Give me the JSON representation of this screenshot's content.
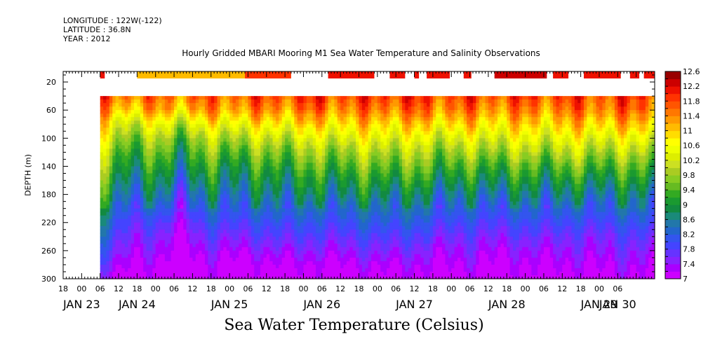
{
  "header": {
    "longitude": "LONGITUDE : 122W(-122)",
    "latitude": "LATITUDE : 36.8N",
    "year": "YEAR : 2012"
  },
  "chart_data": {
    "type": "heatmap",
    "title": "Hourly Gridded MBARI Mooring M1 Sea Water Temperature and Salinity Observations",
    "xlabel": "",
    "ylabel": "DEPTH (m)",
    "footer": "Sea Water Temperature (Celsius)",
    "x_range_hours_from_jan23_00": [
      -12,
      180
    ],
    "data_start_hour": 0,
    "ylim": [
      300,
      5
    ],
    "y_inverted": true,
    "y_ticks": [
      20,
      60,
      100,
      140,
      180,
      220,
      260,
      300
    ],
    "x_hour_ticks": [
      "18",
      "00",
      "06",
      "12",
      "18",
      "00",
      "06",
      "12",
      "18",
      "00",
      "06",
      "12",
      "18",
      "00",
      "06",
      "12",
      "18",
      "00",
      "06",
      "12",
      "18",
      "00",
      "06",
      "12",
      "18",
      "00",
      "06",
      "12",
      "18",
      "00",
      "06"
    ],
    "x_day_labels": [
      {
        "label": "JAN 23",
        "hour": -6
      },
      {
        "label": "JAN 24",
        "hour": 12
      },
      {
        "label": "JAN 25",
        "hour": 42
      },
      {
        "label": "JAN 26",
        "hour": 72
      },
      {
        "label": "JAN 27",
        "hour": 102
      },
      {
        "label": "JAN 28",
        "hour": 132
      },
      {
        "label": "JAN 29",
        "hour": 162
      },
      {
        "label": "JAN 30",
        "hour": 168
      }
    ],
    "colorbar": {
      "levels": [
        7,
        7.2,
        7.4,
        7.6,
        7.8,
        8,
        8.2,
        8.4,
        8.6,
        8.8,
        9,
        9.2,
        9.4,
        9.6,
        9.8,
        10,
        10.2,
        10.4,
        10.6,
        10.8,
        11,
        11.2,
        11.4,
        11.6,
        11.8,
        12,
        12.2,
        12.4,
        12.6
      ],
      "labels": [
        "12.6",
        "12.2",
        "11.8",
        "11.4",
        "11",
        "10.6",
        "10.2",
        "9.8",
        "9.4",
        "9",
        "8.6",
        "8.2",
        "7.8",
        "7.4",
        "7"
      ],
      "colors": [
        "#cc00ff",
        "#aa00ff",
        "#8822ff",
        "#6633ff",
        "#4444ff",
        "#3355ee",
        "#2266cc",
        "#2277aa",
        "#1a8a7a",
        "#128a40",
        "#1a9a30",
        "#33aa22",
        "#66bb22",
        "#88cc22",
        "#aacc22",
        "#cce022",
        "#ddee00",
        "#eeff00",
        "#ffff00",
        "#ffdd00",
        "#ffbb00",
        "#ff9900",
        "#ff7700",
        "#ff5500",
        "#ff3300",
        "#ee1100",
        "#cc0000",
        "#990000"
      ]
    },
    "surface_temperature_segments": [
      {
        "start_hour": 0,
        "end_hour": 1.5,
        "value": 12.0
      },
      {
        "start_hour": 12,
        "end_hour": 47,
        "value": 11.1
      },
      {
        "start_hour": 47,
        "end_hour": 62,
        "value": 11.9
      },
      {
        "start_hour": 74,
        "end_hour": 89,
        "value": 12.0
      },
      {
        "start_hour": 94,
        "end_hour": 99,
        "value": 12.0
      },
      {
        "start_hour": 102,
        "end_hour": 103.5,
        "value": 12.0
      },
      {
        "start_hour": 106,
        "end_hour": 113.5,
        "value": 12.0
      },
      {
        "start_hour": 118,
        "end_hour": 120.5,
        "value": 12.0
      },
      {
        "start_hour": 128,
        "end_hour": 145,
        "value": 12.2
      },
      {
        "start_hour": 147,
        "end_hour": 152,
        "value": 12.0
      },
      {
        "start_hour": 157,
        "end_hour": 169,
        "value": 12.0
      },
      {
        "start_hour": 172,
        "end_hour": 175,
        "value": 12.0
      },
      {
        "start_hour": 176.5,
        "end_hour": 188,
        "value": 12.0
      }
    ],
    "profile_depths": [
      40,
      60,
      80,
      100,
      120,
      140,
      160,
      180,
      200,
      220,
      240,
      260,
      280,
      300
    ],
    "profiles": [
      {
        "hour": 0,
        "temps": [
          11.7,
          11.3,
          10.8,
          10.4,
          10.0,
          9.7,
          9.4,
          9.1,
          8.8,
          8.5,
          8.2,
          7.9,
          7.6,
          7.3
        ]
      },
      {
        "hour": 10,
        "temps": [
          11.6,
          11.0,
          10.2,
          9.7,
          9.3,
          9.0,
          8.7,
          8.4,
          8.1,
          7.8,
          7.6,
          7.4,
          7.2,
          7.0
        ]
      },
      {
        "hour": 20,
        "temps": [
          11.5,
          11.2,
          10.5,
          9.9,
          9.5,
          9.1,
          8.8,
          8.5,
          8.2,
          7.8,
          7.5,
          7.3,
          7.1,
          7.0
        ]
      },
      {
        "hour": 26,
        "temps": [
          11.6,
          11.0,
          10.1,
          9.5,
          9.1,
          8.8,
          8.4,
          8.0,
          7.7,
          7.4,
          7.2,
          7.0,
          6.9,
          6.8
        ]
      },
      {
        "hour": 36,
        "temps": [
          11.6,
          11.3,
          10.6,
          10.0,
          9.6,
          9.2,
          8.9,
          8.6,
          8.3,
          8.0,
          7.7,
          7.4,
          7.2,
          7.0
        ]
      },
      {
        "hour": 48,
        "temps": [
          11.7,
          11.3,
          10.6,
          10.0,
          9.5,
          9.1,
          8.8,
          8.5,
          8.2,
          7.9,
          7.6,
          7.3,
          7.0,
          6.9
        ]
      },
      {
        "hour": 60,
        "temps": [
          11.8,
          11.4,
          10.8,
          10.2,
          9.7,
          9.3,
          9.0,
          8.7,
          8.4,
          8.1,
          7.8,
          7.5,
          7.2,
          7.0
        ]
      },
      {
        "hour": 72,
        "temps": [
          11.9,
          11.5,
          10.9,
          10.3,
          9.8,
          9.4,
          9.0,
          8.7,
          8.3,
          8.0,
          7.7,
          7.4,
          7.1,
          7.0
        ]
      },
      {
        "hour": 84,
        "temps": [
          11.8,
          11.4,
          10.9,
          10.4,
          9.9,
          9.5,
          9.1,
          8.8,
          8.4,
          8.1,
          7.8,
          7.5,
          7.2,
          7.0
        ]
      },
      {
        "hour": 96,
        "temps": [
          12.0,
          11.6,
          11.0,
          10.5,
          10.0,
          9.6,
          9.2,
          8.8,
          8.5,
          8.2,
          7.9,
          7.6,
          7.3,
          7.1
        ]
      },
      {
        "hour": 108,
        "temps": [
          11.8,
          11.5,
          10.9,
          10.3,
          9.8,
          9.4,
          9.0,
          8.6,
          8.3,
          8.0,
          7.7,
          7.4,
          7.2,
          7.0
        ]
      },
      {
        "hour": 120,
        "temps": [
          11.8,
          11.4,
          10.9,
          10.3,
          9.8,
          9.3,
          8.9,
          8.5,
          8.2,
          7.9,
          7.6,
          7.4,
          7.2,
          7.0
        ]
      },
      {
        "hour": 132,
        "temps": [
          11.8,
          11.4,
          10.9,
          10.4,
          9.9,
          9.4,
          9.0,
          8.6,
          8.2,
          7.9,
          7.6,
          7.3,
          7.1,
          7.0
        ]
      },
      {
        "hour": 144,
        "temps": [
          11.8,
          11.4,
          10.9,
          10.4,
          9.9,
          9.4,
          9.0,
          8.6,
          8.3,
          8.0,
          7.7,
          7.4,
          7.2,
          7.0
        ]
      },
      {
        "hour": 156,
        "temps": [
          11.8,
          11.5,
          11.0,
          10.5,
          10.0,
          9.5,
          9.0,
          8.6,
          8.2,
          7.9,
          7.6,
          7.4,
          7.2,
          7.0
        ]
      },
      {
        "hour": 168,
        "temps": [
          11.8,
          11.5,
          11.0,
          10.4,
          9.9,
          9.4,
          9.0,
          8.6,
          8.3,
          8.0,
          7.7,
          7.5,
          7.3,
          7.1
        ]
      },
      {
        "hour": 180,
        "temps": [
          11.9,
          11.6,
          11.1,
          10.5,
          10.0,
          9.5,
          9.1,
          8.7,
          8.4,
          8.1,
          7.8,
          7.5,
          7.3,
          7.1
        ]
      }
    ]
  }
}
